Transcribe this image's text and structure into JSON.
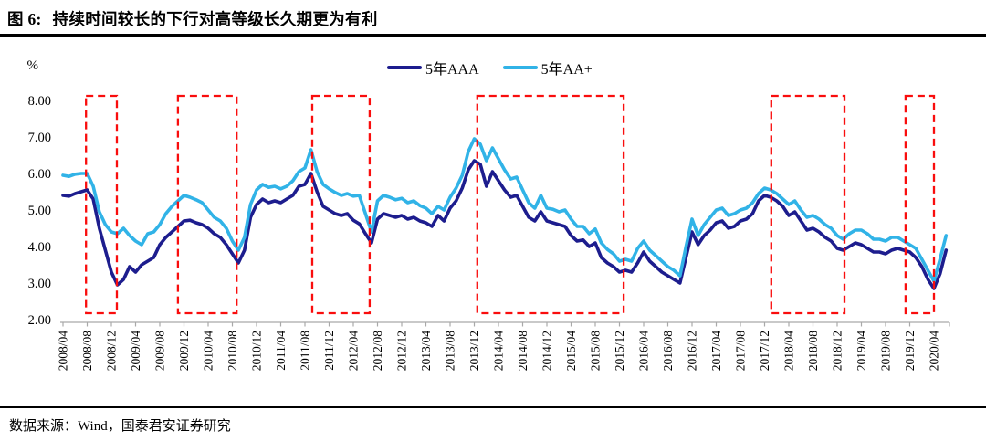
{
  "header": {
    "figure_label": "图 6:",
    "title": "持续时间较长的下行对高等级长久期更为有利"
  },
  "footer": {
    "source": "数据来源：Wind，国泰君安证券研究"
  },
  "chart_data": {
    "type": "line",
    "unit_label": "%",
    "start_month": "2008/04",
    "x_interval_months": 1,
    "x_tick_every": 4,
    "x_tick_labels": [
      "2008/04",
      "2008/08",
      "2008/12",
      "2009/04",
      "2009/08",
      "2009/12",
      "2010/04",
      "2010/08",
      "2010/12",
      "2011/04",
      "2011/08",
      "2011/12",
      "2012/04",
      "2012/08",
      "2012/12",
      "2013/04",
      "2013/08",
      "2013/12",
      "2014/04",
      "2014/08",
      "2014/12",
      "2015/04",
      "2015/08",
      "2015/12",
      "2016/04",
      "2016/08",
      "2016/12",
      "2017/04",
      "2017/08",
      "2017/12",
      "2018/04",
      "2018/08",
      "2018/12",
      "2019/04",
      "2019/08",
      "2019/12",
      "2020/04"
    ],
    "y_ticks": [
      8,
      7,
      6,
      5,
      4,
      3,
      2
    ],
    "y_tick_labels": [
      "8.00",
      "7.00",
      "6.00",
      "5.00",
      "4.00",
      "3.00",
      "2.00"
    ],
    "ylim": [
      2,
      8
    ],
    "grid": false,
    "legend_position": "top-center",
    "axis_color": "#a9a9a9",
    "series": [
      {
        "name": "5年AAA",
        "color": "#1d1d8e",
        "values": [
          5.4,
          5.38,
          5.45,
          5.5,
          5.55,
          5.3,
          4.5,
          3.9,
          3.3,
          2.95,
          3.1,
          3.45,
          3.3,
          3.5,
          3.6,
          3.7,
          4.05,
          4.25,
          4.4,
          4.55,
          4.7,
          4.72,
          4.65,
          4.6,
          4.5,
          4.35,
          4.25,
          4.05,
          3.8,
          3.55,
          3.9,
          4.8,
          5.15,
          5.3,
          5.2,
          5.25,
          5.2,
          5.3,
          5.4,
          5.65,
          5.7,
          6.0,
          5.5,
          5.1,
          5.0,
          4.9,
          4.85,
          4.9,
          4.72,
          4.62,
          4.35,
          4.1,
          4.75,
          4.9,
          4.85,
          4.8,
          4.85,
          4.75,
          4.8,
          4.7,
          4.65,
          4.55,
          4.85,
          4.7,
          5.05,
          5.25,
          5.6,
          6.1,
          6.35,
          6.25,
          5.65,
          6.05,
          5.8,
          5.55,
          5.35,
          5.4,
          5.1,
          4.8,
          4.7,
          4.95,
          4.7,
          4.65,
          4.6,
          4.55,
          4.3,
          4.15,
          4.18,
          4.0,
          4.1,
          3.7,
          3.55,
          3.45,
          3.3,
          3.35,
          3.3,
          3.55,
          3.85,
          3.6,
          3.45,
          3.3,
          3.2,
          3.1,
          3.0,
          3.7,
          4.4,
          4.05,
          4.3,
          4.45,
          4.65,
          4.7,
          4.5,
          4.55,
          4.7,
          4.75,
          4.9,
          5.25,
          5.4,
          5.35,
          5.25,
          5.1,
          4.85,
          4.95,
          4.7,
          4.45,
          4.5,
          4.4,
          4.25,
          4.15,
          3.95,
          3.9,
          4.0,
          4.1,
          4.05,
          3.95,
          3.85,
          3.85,
          3.8,
          3.9,
          3.95,
          3.9,
          3.85,
          3.7,
          3.45,
          3.1,
          2.85,
          3.25,
          3.9
        ]
      },
      {
        "name": "5年AA+",
        "color": "#31b3e7",
        "values": [
          5.95,
          5.92,
          5.98,
          6.0,
          6.0,
          5.65,
          4.95,
          4.6,
          4.4,
          4.35,
          4.5,
          4.3,
          4.15,
          4.05,
          4.35,
          4.4,
          4.6,
          4.9,
          5.1,
          5.25,
          5.4,
          5.35,
          5.28,
          5.2,
          5.0,
          4.8,
          4.7,
          4.5,
          4.15,
          3.9,
          4.25,
          5.15,
          5.55,
          5.7,
          5.62,
          5.65,
          5.58,
          5.65,
          5.8,
          6.05,
          6.15,
          6.65,
          6.05,
          5.7,
          5.58,
          5.48,
          5.4,
          5.45,
          5.38,
          5.4,
          4.9,
          4.4,
          5.25,
          5.4,
          5.35,
          5.28,
          5.32,
          5.2,
          5.25,
          5.12,
          5.05,
          4.9,
          5.1,
          5.0,
          5.35,
          5.6,
          5.95,
          6.6,
          6.95,
          6.8,
          6.35,
          6.7,
          6.4,
          6.1,
          5.85,
          5.9,
          5.55,
          5.2,
          5.05,
          5.4,
          5.05,
          5.02,
          4.95,
          5.0,
          4.75,
          4.55,
          4.55,
          4.35,
          4.48,
          4.1,
          3.92,
          3.8,
          3.6,
          3.65,
          3.6,
          3.95,
          4.15,
          3.9,
          3.75,
          3.6,
          3.45,
          3.35,
          3.2,
          4.0,
          4.75,
          4.3,
          4.6,
          4.8,
          5.0,
          5.05,
          4.85,
          4.9,
          5.0,
          5.05,
          5.2,
          5.45,
          5.6,
          5.55,
          5.45,
          5.3,
          5.15,
          5.25,
          5.0,
          4.8,
          4.85,
          4.75,
          4.6,
          4.5,
          4.3,
          4.2,
          4.35,
          4.45,
          4.45,
          4.35,
          4.2,
          4.2,
          4.15,
          4.25,
          4.25,
          4.15,
          4.05,
          3.95,
          3.65,
          3.35,
          3.05,
          3.65,
          4.3
        ]
      }
    ],
    "highlight_boxes": {
      "color": "#f90d0d",
      "style": "dashed",
      "ranges": [
        {
          "from": "2008/08",
          "to": "2009/01",
          "from_idx": 3.8,
          "to_idx": 8.9
        },
        {
          "from": "2009/11",
          "to": "2010/09",
          "from_idx": 19.0,
          "to_idx": 28.7
        },
        {
          "from": "2011/09",
          "to": "2012/06",
          "from_idx": 41.2,
          "to_idx": 50.7
        },
        {
          "from": "2013/12",
          "to": "2015/12",
          "from_idx": 68.5,
          "to_idx": 92.7
        },
        {
          "from": "2018/01",
          "to": "2019/01",
          "from_idx": 117.1,
          "to_idx": 129.2
        },
        {
          "from": "2019/11",
          "to": "2020/04",
          "from_idx": 139.3,
          "to_idx": 144.0
        }
      ]
    }
  }
}
